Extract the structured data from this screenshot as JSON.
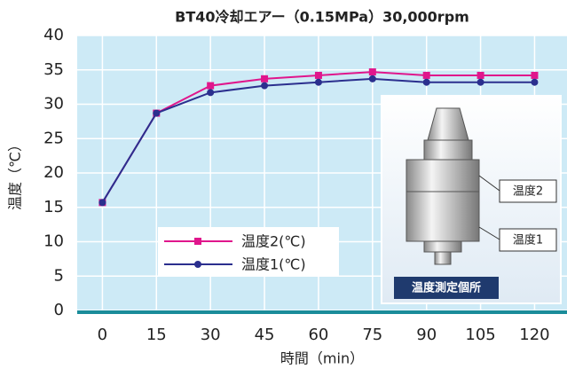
{
  "chart_data": {
    "type": "line",
    "title": "BT40冷却エアー（0.15MPa）30,000rpm",
    "x_label": "時間（min）",
    "y_label": "温度（℃）",
    "x": [
      0,
      15,
      30,
      45,
      60,
      75,
      90,
      105,
      120
    ],
    "series": [
      {
        "name": "温度2(℃)",
        "color": "#e0168c",
        "marker": "square",
        "values": [
          15.7,
          28.7,
          32.7,
          33.7,
          34.2,
          34.7,
          34.2,
          34.2,
          34.2
        ]
      },
      {
        "name": "温度1(℃)",
        "color": "#2b2f8e",
        "marker": "circle",
        "values": [
          15.7,
          28.7,
          31.7,
          32.7,
          33.2,
          33.7,
          33.2,
          33.2,
          33.2
        ]
      }
    ],
    "xlim": [
      -7,
      129
    ],
    "xticks": [
      0,
      15,
      30,
      45,
      60,
      75,
      90,
      105,
      120
    ],
    "ylim": [
      0,
      40
    ],
    "yticks": [
      0,
      5,
      10,
      15,
      20,
      25,
      30,
      35,
      40
    ],
    "grid": true,
    "annotations": {
      "upper": "温度2",
      "lower": "温度1",
      "caption": "温度測定個所"
    }
  }
}
